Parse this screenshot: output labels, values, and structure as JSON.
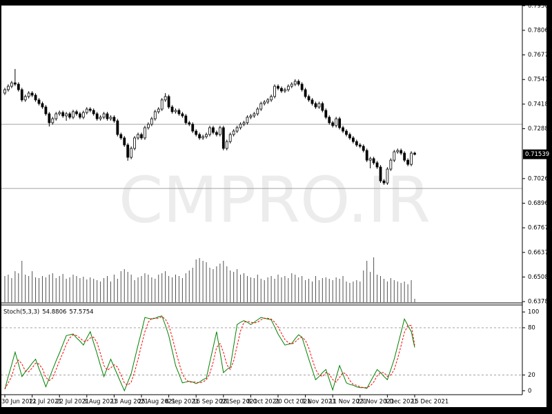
{
  "chart_data": [
    {
      "type": "candlestick",
      "watermark": "CMPRO.IR",
      "bull_color": "#ffffff",
      "bear_color": "#000000",
      "line_color": "#000000",
      "volume_color": "#505050",
      "hline_color": "#a0a0a0",
      "ylim": [
        0.6368,
        0.7937
      ],
      "yticks": [
        {
          "value": 0.7936,
          "label": "0.79360"
        },
        0.78065,
        {
          "value": 0.7677,
          "label": "0.76770"
        },
        0.75475,
        {
          "value": 0.7418,
          "label": "0.74180"
        },
        0.72885,
        {
          "value": 0.7026,
          "label": "0.70260"
        },
        0.68965,
        {
          "value": 0.6767,
          "label": "0.67670"
        },
        0.66375,
        {
          "value": 0.6508,
          "label": "0.65080"
        },
        0.63785
      ],
      "hlines": [
        0.7312,
        0.6974
      ],
      "categories": [
        "30 Jun 2021",
        null,
        null,
        null,
        null,
        null,
        null,
        null,
        "12 Jul 2021",
        null,
        null,
        null,
        null,
        null,
        null,
        null,
        "22 Jul 2021",
        null,
        null,
        null,
        null,
        null,
        null,
        null,
        "3 Aug 2021",
        null,
        null,
        null,
        null,
        null,
        null,
        null,
        "13 Aug 2021",
        null,
        null,
        null,
        null,
        null,
        null,
        null,
        "25 Aug 2021",
        null,
        null,
        null,
        null,
        null,
        null,
        null,
        "6 Sep 2021",
        null,
        null,
        null,
        null,
        null,
        null,
        null,
        "16 Sep 2021",
        null,
        null,
        null,
        null,
        null,
        null,
        null,
        "28 Sep 2021",
        null,
        null,
        null,
        null,
        null,
        null,
        null,
        "8 Oct 2021",
        null,
        null,
        null,
        null,
        null,
        null,
        null,
        "20 Oct 2021",
        null,
        null,
        null,
        null,
        null,
        null,
        null,
        "1 Nov 2021",
        null,
        null,
        null,
        null,
        null,
        null,
        null,
        "11 Nov 2021",
        null,
        null,
        null,
        null,
        null,
        null,
        null,
        "23 Nov 2021",
        null,
        null,
        null,
        null,
        null,
        null,
        null,
        "3 Dec 2021",
        null,
        null,
        null,
        null,
        null,
        null,
        null,
        "15 Dec 2021"
      ],
      "open": [
        0.7476,
        0.7494,
        0.7512,
        0.753,
        0.7523,
        0.7494,
        0.744,
        0.7458,
        0.7476,
        0.7465,
        0.744,
        0.7421,
        0.7403,
        0.7367,
        0.732,
        0.7341,
        0.7367,
        0.7374,
        0.7356,
        0.7367,
        0.7349,
        0.7378,
        0.7367,
        0.7349,
        0.7374,
        0.7392,
        0.7385,
        0.7367,
        0.7341,
        0.7349,
        0.7367,
        0.7341,
        0.7349,
        0.733,
        0.7258,
        0.724,
        0.7203,
        0.7138,
        0.7185,
        0.724,
        0.7258,
        0.724,
        0.7294,
        0.7312,
        0.7341,
        0.7378,
        0.7392,
        0.744,
        0.7458,
        0.7403,
        0.7378,
        0.7385,
        0.7367,
        0.7356,
        0.732,
        0.7312,
        0.7276,
        0.7258,
        0.724,
        0.7247,
        0.7258,
        0.7294,
        0.7269,
        0.7258,
        0.7294,
        0.7185,
        0.7221,
        0.7258,
        0.7276,
        0.7294,
        0.7312,
        0.732,
        0.7349,
        0.7356,
        0.7367,
        0.7392,
        0.7421,
        0.7429,
        0.744,
        0.7458,
        0.7512,
        0.7501,
        0.7487,
        0.7494,
        0.7512,
        0.7523,
        0.7538,
        0.7523,
        0.7494,
        0.7458,
        0.744,
        0.7421,
        0.7403,
        0.7421,
        0.7385,
        0.7349,
        0.732,
        0.7305,
        0.7341,
        0.7294,
        0.7276,
        0.7258,
        0.724,
        0.7221,
        0.7203,
        0.7196,
        0.7174,
        0.7123,
        0.7131,
        0.7109,
        0.7087,
        0.7014,
        0.7003,
        0.7076,
        0.7123,
        0.7167,
        0.7174,
        0.716,
        0.7123,
        0.7101,
        0.716
      ],
      "high": [
        0.7504,
        0.7522,
        0.754,
        0.7603,
        0.7533,
        0.7504,
        0.7468,
        0.7486,
        0.7486,
        0.7475,
        0.745,
        0.7431,
        0.7413,
        0.7377,
        0.7351,
        0.7377,
        0.7384,
        0.7384,
        0.7377,
        0.7377,
        0.7388,
        0.7388,
        0.7377,
        0.7384,
        0.7402,
        0.7402,
        0.7395,
        0.7377,
        0.7359,
        0.7377,
        0.7377,
        0.7359,
        0.7359,
        0.734,
        0.7268,
        0.725,
        0.7213,
        0.7195,
        0.725,
        0.7268,
        0.7268,
        0.7304,
        0.7322,
        0.7351,
        0.7388,
        0.7402,
        0.745,
        0.7476,
        0.7468,
        0.7413,
        0.7395,
        0.7395,
        0.7377,
        0.7366,
        0.733,
        0.7322,
        0.7286,
        0.7268,
        0.7257,
        0.7268,
        0.7304,
        0.7304,
        0.7279,
        0.7304,
        0.7304,
        0.7231,
        0.7268,
        0.7286,
        0.7304,
        0.7322,
        0.733,
        0.7359,
        0.7366,
        0.7377,
        0.7402,
        0.7431,
        0.7439,
        0.745,
        0.7468,
        0.7522,
        0.7522,
        0.7511,
        0.7504,
        0.7522,
        0.7533,
        0.7549,
        0.7548,
        0.7533,
        0.7504,
        0.7468,
        0.745,
        0.7431,
        0.7431,
        0.7431,
        0.7395,
        0.7359,
        0.733,
        0.7351,
        0.7351,
        0.7304,
        0.7286,
        0.7268,
        0.725,
        0.7231,
        0.7213,
        0.7206,
        0.7184,
        0.7141,
        0.7141,
        0.7119,
        0.7097,
        0.7024,
        0.7086,
        0.7133,
        0.7177,
        0.7184,
        0.7184,
        0.717,
        0.7133,
        0.717,
        0.7168
      ],
      "low": [
        0.7466,
        0.7484,
        0.7502,
        0.7513,
        0.7484,
        0.743,
        0.743,
        0.7448,
        0.7455,
        0.743,
        0.7411,
        0.7393,
        0.7357,
        0.73,
        0.731,
        0.7331,
        0.7357,
        0.7346,
        0.733,
        0.7339,
        0.7339,
        0.7357,
        0.7339,
        0.7339,
        0.7364,
        0.7375,
        0.7357,
        0.7331,
        0.7331,
        0.7339,
        0.7331,
        0.7331,
        0.732,
        0.7248,
        0.723,
        0.7193,
        0.712,
        0.7128,
        0.7175,
        0.723,
        0.723,
        0.723,
        0.7284,
        0.7302,
        0.7331,
        0.7368,
        0.7382,
        0.743,
        0.7393,
        0.7368,
        0.7368,
        0.7357,
        0.7346,
        0.731,
        0.7302,
        0.7266,
        0.7248,
        0.723,
        0.723,
        0.7237,
        0.7248,
        0.7259,
        0.7248,
        0.7248,
        0.7175,
        0.7175,
        0.7211,
        0.7248,
        0.7266,
        0.7284,
        0.7302,
        0.731,
        0.7339,
        0.7346,
        0.7357,
        0.7382,
        0.7411,
        0.7419,
        0.743,
        0.7448,
        0.7491,
        0.7477,
        0.7477,
        0.7484,
        0.7502,
        0.7513,
        0.7513,
        0.7484,
        0.7448,
        0.743,
        0.7411,
        0.7393,
        0.7393,
        0.7375,
        0.7339,
        0.731,
        0.7295,
        0.7295,
        0.7284,
        0.7266,
        0.7248,
        0.723,
        0.7211,
        0.7193,
        0.7186,
        0.7164,
        0.7113,
        0.708,
        0.7099,
        0.7077,
        0.7004,
        0.6993,
        0.6993,
        0.7066,
        0.7113,
        0.7157,
        0.715,
        0.7113,
        0.7091,
        0.7091,
        0.7148
      ],
      "close": [
        0.7494,
        0.7512,
        0.753,
        0.7523,
        0.7494,
        0.744,
        0.7458,
        0.7476,
        0.7465,
        0.744,
        0.7421,
        0.7403,
        0.7367,
        0.732,
        0.7341,
        0.7367,
        0.7374,
        0.7356,
        0.7367,
        0.7349,
        0.7378,
        0.7367,
        0.7349,
        0.7374,
        0.7392,
        0.7385,
        0.7367,
        0.7341,
        0.7349,
        0.7367,
        0.7341,
        0.7349,
        0.733,
        0.7258,
        0.724,
        0.7203,
        0.7138,
        0.7185,
        0.724,
        0.7258,
        0.724,
        0.7294,
        0.7312,
        0.7341,
        0.7378,
        0.7392,
        0.744,
        0.7458,
        0.7403,
        0.7378,
        0.7385,
        0.7367,
        0.7356,
        0.732,
        0.7312,
        0.7276,
        0.7258,
        0.724,
        0.7247,
        0.7258,
        0.7294,
        0.7269,
        0.7258,
        0.7294,
        0.7185,
        0.7221,
        0.7258,
        0.7276,
        0.7294,
        0.7312,
        0.732,
        0.7349,
        0.7356,
        0.7367,
        0.7392,
        0.7421,
        0.7429,
        0.744,
        0.7458,
        0.7512,
        0.7501,
        0.7487,
        0.7494,
        0.7512,
        0.7523,
        0.7538,
        0.7523,
        0.7494,
        0.7458,
        0.744,
        0.7421,
        0.7403,
        0.7421,
        0.7385,
        0.7349,
        0.732,
        0.7305,
        0.7341,
        0.7294,
        0.7276,
        0.7258,
        0.724,
        0.7221,
        0.7203,
        0.7196,
        0.7174,
        0.7123,
        0.7131,
        0.7109,
        0.7087,
        0.7014,
        0.7003,
        0.7076,
        0.7123,
        0.7167,
        0.7174,
        0.716,
        0.7123,
        0.7101,
        0.716,
        0.71539
      ],
      "volume": [
        38,
        40,
        35,
        45,
        42,
        60,
        40,
        38,
        45,
        36,
        35,
        38,
        36,
        40,
        42,
        35,
        38,
        41,
        34,
        36,
        40,
        38,
        35,
        37,
        33,
        36,
        34,
        32,
        30,
        35,
        38,
        30,
        40,
        34,
        45,
        48,
        44,
        40,
        32,
        36,
        38,
        42,
        40,
        36,
        34,
        40,
        42,
        45,
        38,
        36,
        40,
        38,
        35,
        42,
        46,
        50,
        62,
        64,
        60,
        58,
        50,
        48,
        52,
        56,
        60,
        52,
        46,
        44,
        48,
        40,
        42,
        38,
        36,
        35,
        40,
        34,
        32,
        36,
        38,
        34,
        40,
        36,
        38,
        35,
        42,
        40,
        36,
        38,
        32,
        34,
        30,
        38,
        32,
        35,
        36,
        34,
        32,
        36,
        34,
        38,
        30,
        28,
        30,
        32,
        30,
        46,
        60,
        44,
        65,
        40,
        38,
        34,
        30,
        35,
        32,
        30,
        28,
        30,
        26,
        32,
        5
      ]
    },
    {
      "type": "line",
      "title": "Stoch(5,3,3)",
      "ylim": [
        -5,
        108
      ],
      "yticks": [
        0,
        20,
        80,
        100
      ],
      "levels": [
        20,
        80
      ],
      "level_color": "#a0a0a0",
      "series": [
        {
          "color": "#008000",
          "values": [
            2,
            18,
            33,
            49,
            34,
            18,
            24,
            29,
            35,
            40,
            28,
            17,
            5,
            16,
            27,
            38,
            48,
            59,
            70,
            71,
            72,
            67,
            63,
            58,
            67,
            75,
            61,
            47,
            32,
            18,
            29,
            40,
            30,
            20,
            10,
            0,
            11,
            22,
            40,
            58,
            75,
            93,
            92,
            91,
            92,
            94,
            95,
            83,
            70,
            51,
            32,
            21,
            10,
            11,
            12,
            11,
            9,
            11,
            14,
            16,
            36,
            55,
            75,
            49,
            23,
            27,
            30,
            57,
            84,
            87,
            89,
            87,
            84,
            87,
            90,
            93,
            92,
            91,
            90,
            81,
            72,
            65,
            58,
            59,
            60,
            66,
            71,
            68,
            54,
            40,
            27,
            14,
            18,
            23,
            27,
            14,
            1,
            17,
            32,
            21,
            10,
            8,
            7,
            5,
            4,
            4,
            3,
            11,
            19,
            27,
            23,
            18,
            14,
            27,
            40,
            57,
            74,
            91,
            83,
            75,
            54.8806
          ]
        },
        {
          "color": "#ff0000",
          "dash": true,
          "values": [
            2,
            10,
            18,
            33,
            39,
            34,
            25,
            24,
            29,
            35,
            34,
            28,
            17,
            13,
            16,
            27,
            38,
            48,
            59,
            67,
            71,
            70,
            67,
            63,
            63,
            67,
            68,
            61,
            47,
            32,
            26,
            29,
            33,
            30,
            20,
            10,
            7,
            11,
            24,
            40,
            58,
            75,
            87,
            92,
            92,
            92,
            94,
            91,
            83,
            68,
            51,
            35,
            21,
            14,
            11,
            11,
            11,
            10,
            11,
            14,
            22,
            36,
            55,
            60,
            49,
            33,
            27,
            38,
            57,
            76,
            87,
            88,
            87,
            86,
            87,
            90,
            92,
            92,
            91,
            87,
            81,
            73,
            65,
            61,
            59,
            62,
            66,
            68,
            64,
            54,
            40,
            27,
            20,
            18,
            23,
            21,
            14,
            11,
            17,
            23,
            21,
            13,
            8,
            7,
            5,
            4,
            4,
            6,
            11,
            19,
            23,
            23,
            18,
            20,
            27,
            41,
            57,
            74,
            83,
            83,
            57.5754
          ]
        }
      ]
    }
  ]
}
